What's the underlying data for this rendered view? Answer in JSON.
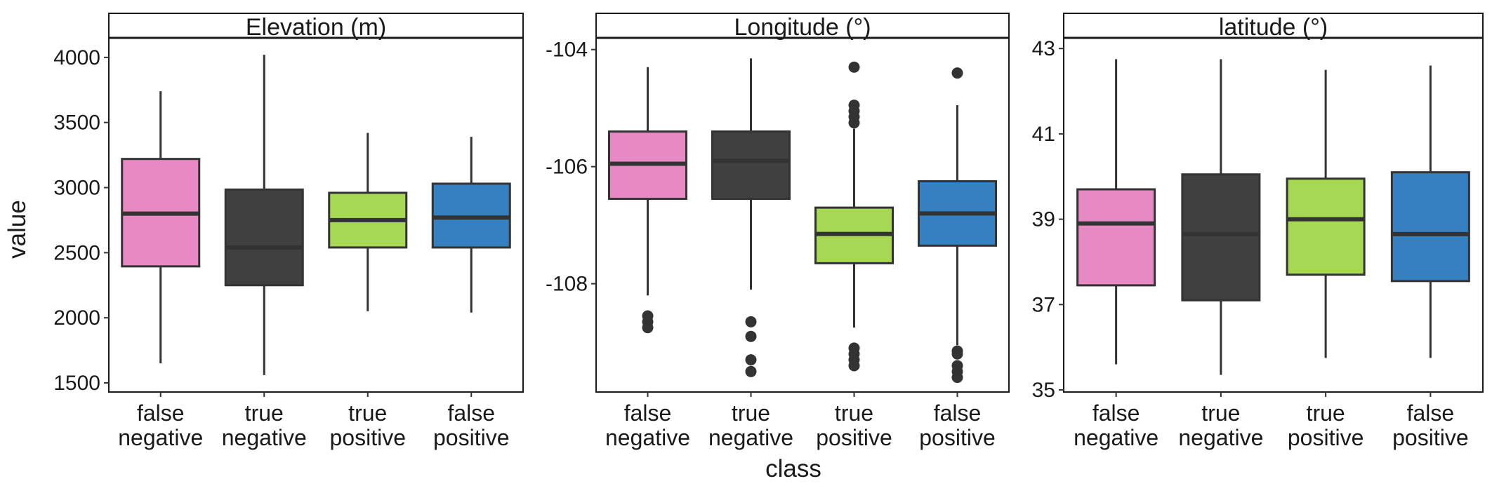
{
  "chart_data": {
    "type": "boxplot",
    "y_axis_title": "value",
    "x_axis_title": "class",
    "categories": [
      "false\nnegative",
      "true\nnegative",
      "true\npositive",
      "false\npositive"
    ],
    "colors": {
      "false negative": "#e78ac3",
      "true negative": "#404040",
      "true positive": "#a6d854",
      "false positive": "#3480c0"
    },
    "outline_color": "#333333",
    "panels": [
      {
        "title": "Elevation (m)",
        "ylim": [
          1430,
          4150
        ],
        "yticks": [
          1500,
          2000,
          2500,
          3000,
          3500,
          4000
        ],
        "boxes": [
          {
            "category": "false negative",
            "whisker_low": 1650,
            "q1": 2395,
            "median": 2800,
            "q3": 3220,
            "whisker_high": 3740,
            "outliers": []
          },
          {
            "category": "true negative",
            "whisker_low": 1560,
            "q1": 2250,
            "median": 2540,
            "q3": 2985,
            "whisker_high": 4020,
            "outliers": []
          },
          {
            "category": "true positive",
            "whisker_low": 2050,
            "q1": 2540,
            "median": 2750,
            "q3": 2960,
            "whisker_high": 3420,
            "outliers": []
          },
          {
            "category": "false positive",
            "whisker_low": 2040,
            "q1": 2540,
            "median": 2770,
            "q3": 3030,
            "whisker_high": 3390,
            "outliers": []
          }
        ]
      },
      {
        "title": "Longitude (°)",
        "ylim": [
          -109.85,
          -103.8
        ],
        "yticks": [
          -104,
          -106,
          -108
        ],
        "boxes": [
          {
            "category": "false negative",
            "whisker_low": -108.2,
            "q1": -106.55,
            "median": -105.95,
            "q3": -105.4,
            "whisker_high": -104.3,
            "outliers": [
              -108.55,
              -108.65,
              -108.75
            ]
          },
          {
            "category": "true negative",
            "whisker_low": -108.1,
            "q1": -106.55,
            "median": -105.9,
            "q3": -105.4,
            "whisker_high": -104.15,
            "outliers": [
              -108.65,
              -108.9,
              -109.3,
              -109.5
            ]
          },
          {
            "category": "true positive",
            "whisker_low": -108.75,
            "q1": -107.65,
            "median": -107.15,
            "q3": -106.7,
            "whisker_high": -105.35,
            "outliers": [
              -104.3,
              -104.95,
              -105.05,
              -105.15,
              -105.25,
              -109.1,
              -109.2,
              -109.3,
              -109.4
            ]
          },
          {
            "category": "false positive",
            "whisker_low": -109.05,
            "q1": -107.35,
            "median": -106.8,
            "q3": -106.25,
            "whisker_high": -104.95,
            "outliers": [
              -104.4,
              -109.15,
              -109.2,
              -109.4,
              -109.5,
              -109.6
            ]
          }
        ]
      },
      {
        "title": "latitude (°)",
        "ylim": [
          34.95,
          43.25
        ],
        "yticks": [
          35,
          37,
          39,
          41,
          43
        ],
        "boxes": [
          {
            "category": "false negative",
            "whisker_low": 35.6,
            "q1": 37.45,
            "median": 38.9,
            "q3": 39.7,
            "whisker_high": 42.75,
            "outliers": []
          },
          {
            "category": "true negative",
            "whisker_low": 35.35,
            "q1": 37.1,
            "median": 38.65,
            "q3": 40.05,
            "whisker_high": 42.75,
            "outliers": []
          },
          {
            "category": "true positive",
            "whisker_low": 35.75,
            "q1": 37.7,
            "median": 39.0,
            "q3": 39.95,
            "whisker_high": 42.5,
            "outliers": []
          },
          {
            "category": "false positive",
            "whisker_low": 35.75,
            "q1": 37.55,
            "median": 38.65,
            "q3": 40.1,
            "whisker_high": 42.6,
            "outliers": []
          }
        ]
      }
    ]
  }
}
